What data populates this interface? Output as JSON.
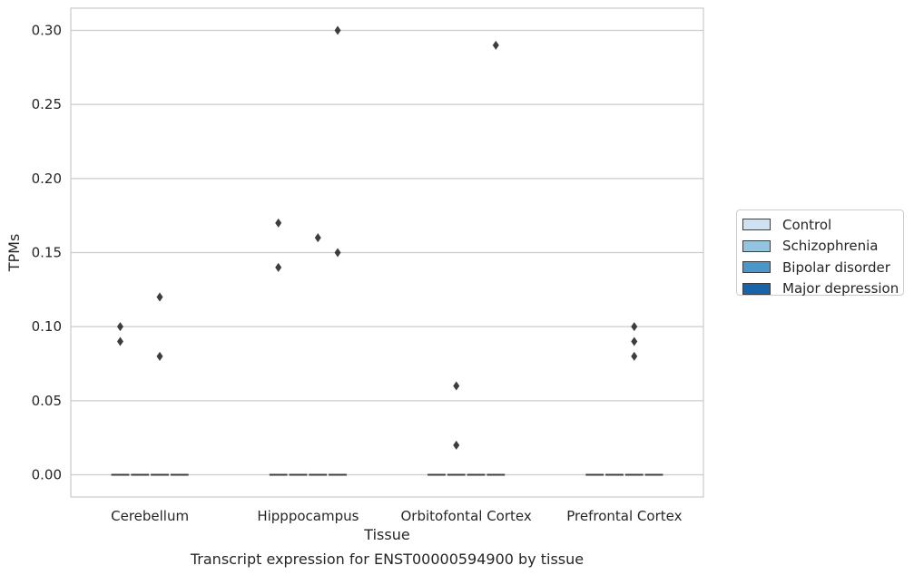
{
  "chart_data": {
    "type": "box",
    "title": "",
    "caption": "Transcript expression for ENST00000594900 by tissue",
    "xlabel": "Tissue",
    "ylabel": "TPMs",
    "ylim": [
      -0.015,
      0.315
    ],
    "yticks": [
      "0.00",
      "0.05",
      "0.10",
      "0.15",
      "0.20",
      "0.25",
      "0.30"
    ],
    "ytick_values": [
      0,
      0.05,
      0.1,
      0.15,
      0.2,
      0.25,
      0.3
    ],
    "grid": "horizontal",
    "legend_position": "right",
    "categories": [
      "Cerebellum",
      "Hipppocampus",
      "Orbitofontal Cortex",
      "Prefrontal Cortex"
    ],
    "series": [
      {
        "name": "Control",
        "color": "#d0e1f2",
        "medians": [
          0,
          0,
          0,
          0
        ],
        "outliers": [
          [
            0.1,
            0.09
          ],
          [
            0.17,
            0.14
          ],
          [],
          []
        ]
      },
      {
        "name": "Schizophrenia",
        "color": "#94c4df",
        "medians": [
          0,
          0,
          0,
          0
        ],
        "outliers": [
          [],
          [],
          [
            0.06,
            0.02
          ],
          []
        ]
      },
      {
        "name": "Bipolar disorder",
        "color": "#4a98c9",
        "medians": [
          0,
          0,
          0,
          0
        ],
        "outliers": [
          [
            0.12,
            0.08
          ],
          [
            0.16
          ],
          [],
          [
            0.1,
            0.09,
            0.08
          ]
        ]
      },
      {
        "name": "Major depression",
        "color": "#1764ab",
        "medians": [
          0,
          0,
          0,
          0
        ],
        "outliers": [
          [],
          [
            0.3,
            0.15
          ],
          [
            0.29
          ],
          []
        ]
      }
    ]
  }
}
